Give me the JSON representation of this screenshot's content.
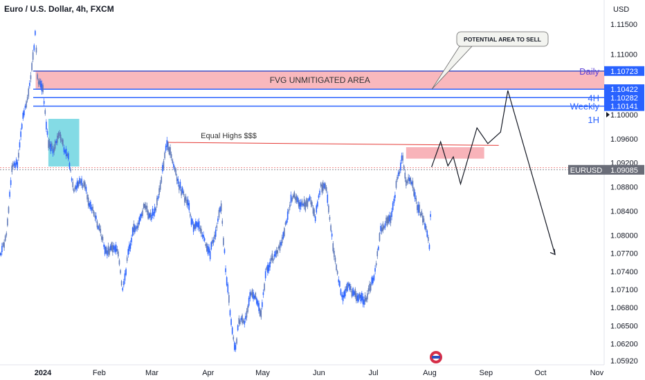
{
  "header": {
    "title": "Euro / U.S. Dollar, 4h, FXCM",
    "currency": "USD"
  },
  "chart_data": {
    "type": "candlestick",
    "title": "Euro / U.S. Dollar, 4h, FXCM",
    "ylim": [
      1.0578,
      1.1175
    ],
    "y_ticks": [
      {
        "value": 1.115,
        "label": "1.11500"
      },
      {
        "value": 1.11,
        "label": "1.11000"
      },
      {
        "value": 1.1,
        "label": "1.10000"
      },
      {
        "value": 1.096,
        "label": "1.09600"
      },
      {
        "value": 1.092,
        "label": "1.09200"
      },
      {
        "value": 1.088,
        "label": "1.08800"
      },
      {
        "value": 1.084,
        "label": "1.08400"
      },
      {
        "value": 1.08,
        "label": "1.08000"
      },
      {
        "value": 1.077,
        "label": "1.07700"
      },
      {
        "value": 1.074,
        "label": "1.07400"
      },
      {
        "value": 1.071,
        "label": "1.07100"
      },
      {
        "value": 1.068,
        "label": "1.06800"
      },
      {
        "value": 1.065,
        "label": "1.06500"
      },
      {
        "value": 1.062,
        "label": "1.06200"
      },
      {
        "value": 1.0592,
        "label": "1.05920"
      }
    ],
    "x_ticks": [
      {
        "label": "2024",
        "date": "2024-01-01",
        "bold": true
      },
      {
        "label": "Feb",
        "date": "2024-02-01"
      },
      {
        "label": "Mar",
        "date": "2024-03-01"
      },
      {
        "label": "Apr",
        "date": "2024-04-01"
      },
      {
        "label": "May",
        "date": "2024-05-01"
      },
      {
        "label": "Jun",
        "date": "2024-06-01"
      },
      {
        "label": "Jul",
        "date": "2024-07-01"
      },
      {
        "label": "Aug",
        "date": "2024-08-01"
      },
      {
        "label": "Sep",
        "date": "2024-09-01"
      },
      {
        "label": "Oct",
        "date": "2024-10-01"
      },
      {
        "label": "Nov",
        "date": "2024-11-01"
      }
    ],
    "price_path": [
      {
        "date": "2023-11-23",
        "price": 1.089
      },
      {
        "date": "2023-11-26",
        "price": 1.095
      },
      {
        "date": "2023-11-29",
        "price": 1.1
      },
      {
        "date": "2023-12-01",
        "price": 1.09
      },
      {
        "date": "2023-12-04",
        "price": 1.085
      },
      {
        "date": "2023-12-06",
        "price": 1.078
      },
      {
        "date": "2023-12-09",
        "price": 1.077
      },
      {
        "date": "2023-12-12",
        "price": 1.08
      },
      {
        "date": "2023-12-15",
        "price": 1.091
      },
      {
        "date": "2023-12-18",
        "price": 1.092
      },
      {
        "date": "2023-12-21",
        "price": 1.1
      },
      {
        "date": "2023-12-24",
        "price": 1.103
      },
      {
        "date": "2023-12-27",
        "price": 1.1105
      },
      {
        "date": "2023-12-28",
        "price": 1.114
      },
      {
        "date": "2023-12-29",
        "price": 1.106
      },
      {
        "date": "2024-01-01",
        "price": 1.104
      },
      {
        "date": "2024-01-04",
        "price": 1.095
      },
      {
        "date": "2024-01-07",
        "price": 1.094
      },
      {
        "date": "2024-01-10",
        "price": 1.097
      },
      {
        "date": "2024-01-12",
        "price": 1.095
      },
      {
        "date": "2024-01-15",
        "price": 1.093
      },
      {
        "date": "2024-01-18",
        "price": 1.087
      },
      {
        "date": "2024-01-21",
        "price": 1.089
      },
      {
        "date": "2024-01-24",
        "price": 1.088
      },
      {
        "date": "2024-01-27",
        "price": 1.085
      },
      {
        "date": "2024-01-30",
        "price": 1.083
      },
      {
        "date": "2024-02-02",
        "price": 1.08
      },
      {
        "date": "2024-02-05",
        "price": 1.077
      },
      {
        "date": "2024-02-08",
        "price": 1.078
      },
      {
        "date": "2024-02-11",
        "price": 1.078
      },
      {
        "date": "2024-02-14",
        "price": 1.0705
      },
      {
        "date": "2024-02-17",
        "price": 1.077
      },
      {
        "date": "2024-02-20",
        "price": 1.081
      },
      {
        "date": "2024-02-23",
        "price": 1.082
      },
      {
        "date": "2024-02-26",
        "price": 1.085
      },
      {
        "date": "2024-02-29",
        "price": 1.083
      },
      {
        "date": "2024-03-03",
        "price": 1.084
      },
      {
        "date": "2024-03-06",
        "price": 1.089
      },
      {
        "date": "2024-03-09",
        "price": 1.095
      },
      {
        "date": "2024-03-12",
        "price": 1.093
      },
      {
        "date": "2024-03-15",
        "price": 1.089
      },
      {
        "date": "2024-03-18",
        "price": 1.087
      },
      {
        "date": "2024-03-21",
        "price": 1.085
      },
      {
        "date": "2024-03-24",
        "price": 1.081
      },
      {
        "date": "2024-03-27",
        "price": 1.082
      },
      {
        "date": "2024-03-30",
        "price": 1.079
      },
      {
        "date": "2024-04-02",
        "price": 1.077
      },
      {
        "date": "2024-04-05",
        "price": 1.0805
      },
      {
        "date": "2024-04-08",
        "price": 1.085
      },
      {
        "date": "2024-04-11",
        "price": 1.073
      },
      {
        "date": "2024-04-14",
        "price": 1.065
      },
      {
        "date": "2024-04-16",
        "price": 1.061
      },
      {
        "date": "2024-04-18",
        "price": 1.066
      },
      {
        "date": "2024-04-21",
        "price": 1.0655
      },
      {
        "date": "2024-04-24",
        "price": 1.07
      },
      {
        "date": "2024-04-27",
        "price": 1.07
      },
      {
        "date": "2024-04-30",
        "price": 1.067
      },
      {
        "date": "2024-05-03",
        "price": 1.074
      },
      {
        "date": "2024-05-06",
        "price": 1.076
      },
      {
        "date": "2024-05-09",
        "price": 1.077
      },
      {
        "date": "2024-05-12",
        "price": 1.079
      },
      {
        "date": "2024-05-15",
        "price": 1.084
      },
      {
        "date": "2024-05-18",
        "price": 1.087
      },
      {
        "date": "2024-05-21",
        "price": 1.085
      },
      {
        "date": "2024-05-24",
        "price": 1.085
      },
      {
        "date": "2024-05-27",
        "price": 1.086
      },
      {
        "date": "2024-05-30",
        "price": 1.083
      },
      {
        "date": "2024-06-02",
        "price": 1.088
      },
      {
        "date": "2024-06-05",
        "price": 1.088
      },
      {
        "date": "2024-06-08",
        "price": 1.08
      },
      {
        "date": "2024-06-11",
        "price": 1.074
      },
      {
        "date": "2024-06-14",
        "price": 1.069
      },
      {
        "date": "2024-06-17",
        "price": 1.072
      },
      {
        "date": "2024-06-20",
        "price": 1.07
      },
      {
        "date": "2024-06-23",
        "price": 1.07
      },
      {
        "date": "2024-06-26",
        "price": 1.069
      },
      {
        "date": "2024-06-29",
        "price": 1.071
      },
      {
        "date": "2024-07-02",
        "price": 1.074
      },
      {
        "date": "2024-07-05",
        "price": 1.081
      },
      {
        "date": "2024-07-08",
        "price": 1.082
      },
      {
        "date": "2024-07-11",
        "price": 1.083
      },
      {
        "date": "2024-07-14",
        "price": 1.089
      },
      {
        "date": "2024-07-17",
        "price": 1.093
      },
      {
        "date": "2024-07-19",
        "price": 1.089
      },
      {
        "date": "2024-07-22",
        "price": 1.089
      },
      {
        "date": "2024-07-25",
        "price": 1.085
      },
      {
        "date": "2024-07-28",
        "price": 1.083
      },
      {
        "date": "2024-07-31",
        "price": 1.08
      },
      {
        "date": "2024-08-01",
        "price": 1.078
      },
      {
        "date": "2024-08-02",
        "price": 1.091
      }
    ],
    "projection": [
      {
        "date": "2024-08-02",
        "price": 1.0913
      },
      {
        "date": "2024-08-07",
        "price": 1.0955
      },
      {
        "date": "2024-08-11",
        "price": 1.0915
      },
      {
        "date": "2024-08-14",
        "price": 1.093
      },
      {
        "date": "2024-08-18",
        "price": 1.0885
      },
      {
        "date": "2024-08-27",
        "price": 1.0978
      },
      {
        "date": "2024-09-02",
        "price": 1.0952
      },
      {
        "date": "2024-09-09",
        "price": 1.0971
      },
      {
        "date": "2024-09-13",
        "price": 1.104
      },
      {
        "date": "2024-10-09",
        "price": 1.0768
      }
    ],
    "zones": [
      {
        "label": "FVG UNMITIGATED AREA",
        "date_from": "2023-12-28",
        "date_to": "2024-11-15",
        "price_top": 1.1072,
        "price_bottom": 1.1042
      },
      {
        "label": "",
        "date_from": "2024-07-19",
        "date_to": "2024-08-31",
        "price_top": 1.0946,
        "price_bottom": 1.0927
      },
      {
        "label": "",
        "date_from": "2024-01-04",
        "date_to": "2024-01-21",
        "price_top": 1.0993,
        "price_bottom": 1.0914
      }
    ],
    "levels": [
      {
        "label": "Daily",
        "value": 1.10723,
        "value_label": "1.10723",
        "color": "#5b3fd6"
      },
      {
        "label": "",
        "value": 1.10422,
        "value_label": "1.10422",
        "color": "#2962ff"
      },
      {
        "label": "4H",
        "value": 1.10282,
        "value_label": "1.10282",
        "color": "#2962ff"
      },
      {
        "label": "Weekly",
        "value": 1.10141,
        "value_label": "1.10141",
        "color": "#2962ff"
      },
      {
        "label": "1H",
        "value": 1.1,
        "value_label": "",
        "color": "#2962ff"
      }
    ],
    "equal_highs": {
      "label": "Equal Highs $$$",
      "date_from": "2024-03-09",
      "date_to": "2024-09-08",
      "price_from": 1.0954,
      "price_to": 1.0949
    },
    "last_price": {
      "symbol": "EURUSD",
      "value": 1.09085,
      "value_label": "1.09085"
    },
    "callout": {
      "text": "POTENTIAL AREA TO SELL",
      "target_date": "2024-08-01",
      "target_price": 1.1042
    },
    "colors": {
      "up": "#2962ff",
      "down": "#2962ff",
      "fvg": "#f7a6ad",
      "fvg_line": "#3e51c7",
      "level": "#2962ff",
      "equal_highs": "#e53935",
      "liquidity_box": "#6fd5e0",
      "text": "#131722",
      "axis_label_bg": "#2962ff",
      "last_bg": "#6a6d78"
    }
  }
}
